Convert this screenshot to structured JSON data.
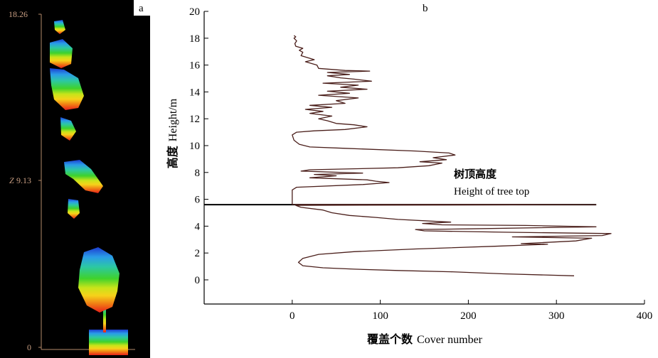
{
  "panel_a": {
    "label": "a",
    "axis_letter": "Z",
    "ticks": [
      {
        "value": 18.26,
        "label": "18.26"
      },
      {
        "value": 9.13,
        "label": "9.13"
      },
      {
        "value": 0,
        "label": "0"
      }
    ],
    "colors": {
      "background": "#000000",
      "axis": "#b58a6a",
      "tick_text": "#c89e82",
      "gradient": [
        "#e8201a",
        "#f07a14",
        "#f6d21a",
        "#c8e41a",
        "#3fd22c",
        "#2cc8a4",
        "#2a9ce8",
        "#1c3cd0"
      ]
    }
  },
  "chart_data": {
    "type": "line",
    "panel_label": "b",
    "xlabel_cn": "覆盖个数",
    "xlabel_en": "Cover number",
    "ylabel_cn": "高度",
    "ylabel_en": "Height/m",
    "xlim": [
      -100,
      400
    ],
    "ylim": [
      -1.8,
      20
    ],
    "xticks": [
      0,
      100,
      200,
      300,
      400
    ],
    "yticks": [
      0,
      2,
      4,
      6,
      8,
      10,
      12,
      14,
      16,
      18,
      20
    ],
    "grid": false,
    "annotation": {
      "cn": "树顶高度",
      "en": "Height of tree top",
      "at_height": 5.6
    },
    "tree_top_line": {
      "y": 5.6,
      "x_from": -100,
      "x_to": 345
    },
    "series": [
      {
        "points": [
          [
            320,
            0.3
          ],
          [
            240,
            0.45
          ],
          [
            180,
            0.6
          ],
          [
            120,
            0.7
          ],
          [
            70,
            0.8
          ],
          [
            35,
            0.9
          ],
          [
            12,
            1.05
          ],
          [
            7,
            1.3
          ],
          [
            12,
            1.6
          ],
          [
            30,
            1.9
          ],
          [
            70,
            2.1
          ],
          [
            140,
            2.3
          ],
          [
            230,
            2.5
          ],
          [
            290,
            2.65
          ],
          [
            260,
            2.7
          ],
          [
            322,
            2.9
          ],
          [
            340,
            3.1
          ],
          [
            250,
            3.2
          ],
          [
            352,
            3.3
          ],
          [
            362,
            3.45
          ],
          [
            240,
            3.55
          ],
          [
            150,
            3.65
          ],
          [
            140,
            3.75
          ],
          [
            200,
            3.8
          ],
          [
            345,
            3.95
          ],
          [
            265,
            4.05
          ],
          [
            170,
            4.1
          ],
          [
            148,
            4.2
          ],
          [
            180,
            4.3
          ],
          [
            120,
            4.5
          ],
          [
            95,
            4.65
          ],
          [
            65,
            4.8
          ],
          [
            45,
            5.0
          ],
          [
            35,
            5.2
          ],
          [
            10,
            5.4
          ],
          [
            4,
            5.55
          ],
          [
            345,
            5.6
          ],
          [
            0,
            5.62
          ],
          [
            0,
            5.9
          ],
          [
            0,
            6.3
          ],
          [
            0,
            6.7
          ],
          [
            5,
            6.9
          ],
          [
            80,
            7.1
          ],
          [
            110,
            7.25
          ],
          [
            95,
            7.35
          ],
          [
            85,
            7.45
          ],
          [
            20,
            7.6
          ],
          [
            50,
            7.75
          ],
          [
            25,
            7.85
          ],
          [
            80,
            7.95
          ],
          [
            10,
            8.1
          ],
          [
            20,
            8.2
          ],
          [
            120,
            8.35
          ],
          [
            155,
            8.5
          ],
          [
            170,
            8.7
          ],
          [
            145,
            8.8
          ],
          [
            175,
            8.95
          ],
          [
            160,
            9.1
          ],
          [
            185,
            9.3
          ],
          [
            178,
            9.45
          ],
          [
            140,
            9.6
          ],
          [
            60,
            9.8
          ],
          [
            20,
            9.9
          ],
          [
            8,
            10.1
          ],
          [
            2,
            10.4
          ],
          [
            0,
            10.8
          ],
          [
            5,
            11.0
          ],
          [
            25,
            11.1
          ],
          [
            60,
            11.2
          ],
          [
            85,
            11.4
          ],
          [
            70,
            11.55
          ],
          [
            50,
            11.65
          ],
          [
            40,
            11.85
          ],
          [
            30,
            12.0
          ],
          [
            45,
            12.2
          ],
          [
            20,
            12.4
          ],
          [
            35,
            12.55
          ],
          [
            15,
            12.7
          ],
          [
            45,
            12.85
          ],
          [
            20,
            13.0
          ],
          [
            60,
            13.15
          ],
          [
            50,
            13.35
          ],
          [
            75,
            13.55
          ],
          [
            30,
            13.75
          ],
          [
            65,
            13.9
          ],
          [
            40,
            14.05
          ],
          [
            85,
            14.2
          ],
          [
            55,
            14.35
          ],
          [
            75,
            14.5
          ],
          [
            35,
            14.65
          ],
          [
            90,
            14.8
          ],
          [
            70,
            14.95
          ],
          [
            55,
            15.05
          ],
          [
            40,
            15.2
          ],
          [
            65,
            15.3
          ],
          [
            40,
            15.45
          ],
          [
            88,
            15.55
          ],
          [
            60,
            15.6
          ],
          [
            30,
            15.75
          ],
          [
            28,
            16.0
          ],
          [
            15,
            16.25
          ],
          [
            25,
            16.4
          ],
          [
            10,
            16.7
          ],
          [
            12,
            16.95
          ],
          [
            8,
            17.1
          ],
          [
            12,
            17.25
          ],
          [
            4,
            17.4
          ],
          [
            3,
            17.6
          ],
          [
            5,
            17.8
          ],
          [
            2,
            18.0
          ],
          [
            4,
            18.1
          ],
          [
            2,
            18.2
          ]
        ]
      }
    ]
  }
}
